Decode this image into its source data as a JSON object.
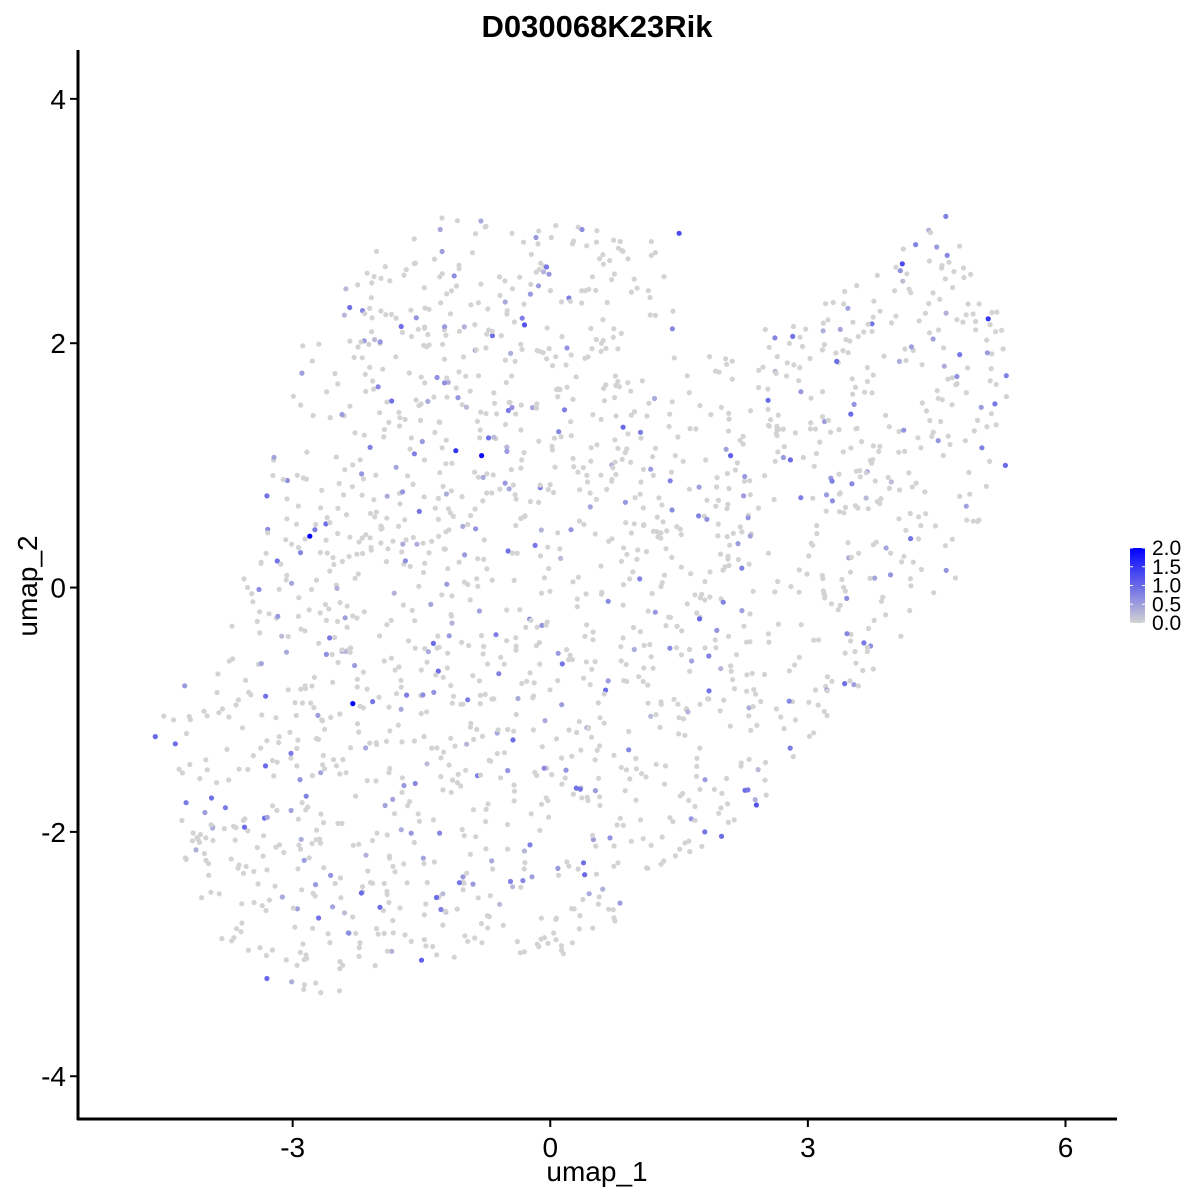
{
  "chart_data": {
    "type": "scatter",
    "title": "D030068K23Rik",
    "xlabel": "umap_1",
    "ylabel": "umap_2",
    "xlim": [
      -5.5,
      6.6
    ],
    "ylim": [
      -4.35,
      4.4
    ],
    "x_ticks": [
      -3,
      0,
      3,
      6
    ],
    "y_ticks": [
      -4,
      -2,
      0,
      2,
      4
    ],
    "x_tick_labels": [
      "-3",
      "0",
      "3",
      "6"
    ],
    "y_tick_labels": [
      "-4",
      "-2",
      "0",
      "2",
      "4"
    ],
    "grid": false,
    "legend": {
      "placement": "right",
      "type": "colorbar",
      "range": [
        0,
        2.0
      ],
      "ticks": [
        0,
        0.5,
        1.0,
        1.5,
        2.0
      ],
      "tick_labels": [
        "0.0",
        "0.5",
        "1.0",
        "1.5",
        "2.0"
      ],
      "color_low": "#d3d3d3",
      "color_high": "#0000ff"
    },
    "point_count": 1850,
    "highlighted_points": [
      {
        "x": -2.8,
        "y": 0.42,
        "value": 2.0
      },
      {
        "x": -2.3,
        "y": -0.95,
        "value": 2.0
      },
      {
        "x": -0.8,
        "y": 1.08,
        "value": 1.9
      },
      {
        "x": -1.1,
        "y": 1.12,
        "value": 1.5
      },
      {
        "x": 5.1,
        "y": 2.2,
        "value": 1.5
      },
      {
        "x": 1.5,
        "y": 2.9,
        "value": 1.3
      },
      {
        "x": 4.1,
        "y": 2.65,
        "value": 1.3
      },
      {
        "x": 2.4,
        "y": -1.78,
        "value": 1.2
      },
      {
        "x": -0.3,
        "y": 2.15,
        "value": 1.2
      },
      {
        "x": 2.1,
        "y": 1.08,
        "value": 1.1
      },
      {
        "x": -1.5,
        "y": -3.05,
        "value": 1.1
      },
      {
        "x": -4.6,
        "y": -1.22,
        "value": 1.0
      },
      {
        "x": -3.3,
        "y": -3.2,
        "value": 1.0
      },
      {
        "x": 5.3,
        "y": 1.0,
        "value": 1.0
      },
      {
        "x": 3.5,
        "y": 1.42,
        "value": 1.0
      },
      {
        "x": -2.2,
        "y": -2.5,
        "value": 1.0
      },
      {
        "x": 0.4,
        "y": -2.35,
        "value": 1.0
      },
      {
        "x": -3.3,
        "y": 0.75,
        "value": 0.9
      },
      {
        "x": 1.8,
        "y": -2.0,
        "value": 0.9
      },
      {
        "x": 0.35,
        "y": -1.65,
        "value": 0.9
      }
    ]
  }
}
